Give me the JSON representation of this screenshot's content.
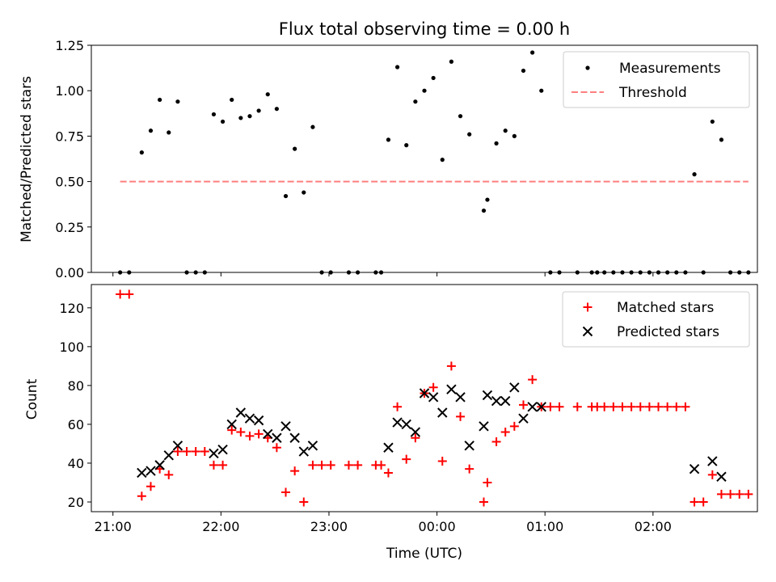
{
  "chart_data": [
    {
      "type": "scatter",
      "title": "Flux total observing time = 0.00 h",
      "xlabel": "",
      "ylabel": "Matched/Predicted stars",
      "ylim": [
        0,
        1.25
      ],
      "yticks": [
        "0.00",
        "0.25",
        "0.50",
        "0.75",
        "1.00",
        "1.25"
      ],
      "legend_position": "top-right",
      "x_unit": "minutes after 21:00 UTC",
      "series": [
        {
          "name": "Measurements",
          "marker": "dot",
          "color": "#000000",
          "points": [
            [
              4,
              0
            ],
            [
              9,
              0
            ],
            [
              16,
              0.66
            ],
            [
              21,
              0.78
            ],
            [
              26,
              0.95
            ],
            [
              31,
              0.77
            ],
            [
              36,
              0.94
            ],
            [
              41,
              0
            ],
            [
              46,
              0
            ],
            [
              51,
              0
            ],
            [
              56,
              0.87
            ],
            [
              61,
              0.83
            ],
            [
              66,
              0.95
            ],
            [
              71,
              0.85
            ],
            [
              76,
              0.86
            ],
            [
              81,
              0.89
            ],
            [
              86,
              0.98
            ],
            [
              91,
              0.9
            ],
            [
              96,
              0.42
            ],
            [
              101,
              0.68
            ],
            [
              106,
              0.44
            ],
            [
              111,
              0.8
            ],
            [
              116,
              0
            ],
            [
              121,
              0
            ],
            [
              131,
              0
            ],
            [
              136,
              0
            ],
            [
              146,
              0
            ],
            [
              149,
              0
            ],
            [
              153,
              0.73
            ],
            [
              158,
              1.13
            ],
            [
              163,
              0.7
            ],
            [
              168,
              0.94
            ],
            [
              173,
              1
            ],
            [
              178,
              1.07
            ],
            [
              183,
              0.62
            ],
            [
              188,
              1.16
            ],
            [
              193,
              0.86
            ],
            [
              198,
              0.76
            ],
            [
              206,
              0.34
            ],
            [
              208,
              0.4
            ],
            [
              213,
              0.71
            ],
            [
              218,
              0.78
            ],
            [
              223,
              0.75
            ],
            [
              228,
              1.11
            ],
            [
              233,
              1.21
            ],
            [
              238,
              1
            ],
            [
              243,
              0
            ],
            [
              248,
              0
            ],
            [
              258,
              0
            ],
            [
              266,
              0
            ],
            [
              269,
              0
            ],
            [
              273,
              0
            ],
            [
              278,
              0
            ],
            [
              283,
              0
            ],
            [
              288,
              0
            ],
            [
              293,
              0
            ],
            [
              298,
              0
            ],
            [
              303,
              0
            ],
            [
              308,
              0
            ],
            [
              313,
              0
            ],
            [
              318,
              0
            ],
            [
              323,
              0.54
            ],
            [
              328,
              0
            ],
            [
              333,
              0.83
            ],
            [
              338,
              0.73
            ],
            [
              343,
              0
            ],
            [
              348,
              0
            ],
            [
              353,
              0
            ]
          ]
        },
        {
          "name": "Threshold",
          "marker": "dashed-line",
          "color": "#ff7f7f",
          "points": [
            [
              4,
              0.5
            ],
            [
              353,
              0.5
            ]
          ]
        }
      ]
    },
    {
      "type": "scatter",
      "title": "",
      "xlabel": "Time (UTC)",
      "ylabel": "Count",
      "xlim": [
        -12,
        358
      ],
      "ylim": [
        15,
        132
      ],
      "x_tick_labels": [
        "21:00",
        "22:00",
        "23:00",
        "00:00",
        "01:00",
        "02:00"
      ],
      "yticks": [
        "20",
        "40",
        "60",
        "80",
        "100",
        "120"
      ],
      "legend_position": "top-right",
      "series": [
        {
          "name": "Matched stars",
          "marker": "plus",
          "color": "#ff0000",
          "points": [
            [
              4,
              127
            ],
            [
              9,
              127
            ],
            [
              16,
              23
            ],
            [
              21,
              28
            ],
            [
              26,
              37
            ],
            [
              31,
              34
            ],
            [
              36,
              46
            ],
            [
              41,
              46
            ],
            [
              46,
              46
            ],
            [
              51,
              46
            ],
            [
              56,
              39
            ],
            [
              61,
              39
            ],
            [
              66,
              57
            ],
            [
              71,
              56
            ],
            [
              76,
              54
            ],
            [
              81,
              55
            ],
            [
              86,
              53
            ],
            [
              91,
              48
            ],
            [
              96,
              25
            ],
            [
              101,
              36
            ],
            [
              106,
              20
            ],
            [
              111,
              39
            ],
            [
              116,
              39
            ],
            [
              121,
              39
            ],
            [
              131,
              39
            ],
            [
              136,
              39
            ],
            [
              146,
              39
            ],
            [
              149,
              39
            ],
            [
              153,
              35
            ],
            [
              158,
              69
            ],
            [
              163,
              42
            ],
            [
              168,
              53
            ],
            [
              173,
              76
            ],
            [
              178,
              79
            ],
            [
              183,
              41
            ],
            [
              188,
              90
            ],
            [
              193,
              64
            ],
            [
              198,
              37
            ],
            [
              206,
              20
            ],
            [
              208,
              30
            ],
            [
              213,
              51
            ],
            [
              218,
              56
            ],
            [
              223,
              59
            ],
            [
              228,
              70
            ],
            [
              233,
              83
            ],
            [
              238,
              69
            ],
            [
              243,
              69
            ],
            [
              248,
              69
            ],
            [
              258,
              69
            ],
            [
              266,
              69
            ],
            [
              269,
              69
            ],
            [
              273,
              69
            ],
            [
              278,
              69
            ],
            [
              283,
              69
            ],
            [
              288,
              69
            ],
            [
              293,
              69
            ],
            [
              298,
              69
            ],
            [
              303,
              69
            ],
            [
              308,
              69
            ],
            [
              313,
              69
            ],
            [
              318,
              69
            ],
            [
              323,
              20
            ],
            [
              328,
              20
            ],
            [
              333,
              34
            ],
            [
              338,
              24
            ],
            [
              343,
              24
            ],
            [
              348,
              24
            ],
            [
              353,
              24
            ]
          ]
        },
        {
          "name": "Predicted stars",
          "marker": "x",
          "color": "#000000",
          "points": [
            [
              16,
              35
            ],
            [
              21,
              36
            ],
            [
              26,
              39
            ],
            [
              31,
              44
            ],
            [
              36,
              49
            ],
            [
              56,
              45
            ],
            [
              61,
              47
            ],
            [
              66,
              60
            ],
            [
              71,
              66
            ],
            [
              76,
              63
            ],
            [
              81,
              62
            ],
            [
              86,
              55
            ],
            [
              91,
              53
            ],
            [
              96,
              59
            ],
            [
              101,
              53
            ],
            [
              106,
              46
            ],
            [
              111,
              49
            ],
            [
              153,
              48
            ],
            [
              158,
              61
            ],
            [
              163,
              60
            ],
            [
              168,
              56
            ],
            [
              173,
              76
            ],
            [
              178,
              74
            ],
            [
              183,
              66
            ],
            [
              188,
              78
            ],
            [
              193,
              74
            ],
            [
              198,
              49
            ],
            [
              206,
              59
            ],
            [
              208,
              75
            ],
            [
              213,
              72
            ],
            [
              218,
              72
            ],
            [
              223,
              79
            ],
            [
              228,
              63
            ],
            [
              233,
              69
            ],
            [
              238,
              69
            ],
            [
              323,
              37
            ],
            [
              333,
              41
            ],
            [
              338,
              33
            ]
          ]
        }
      ]
    }
  ]
}
